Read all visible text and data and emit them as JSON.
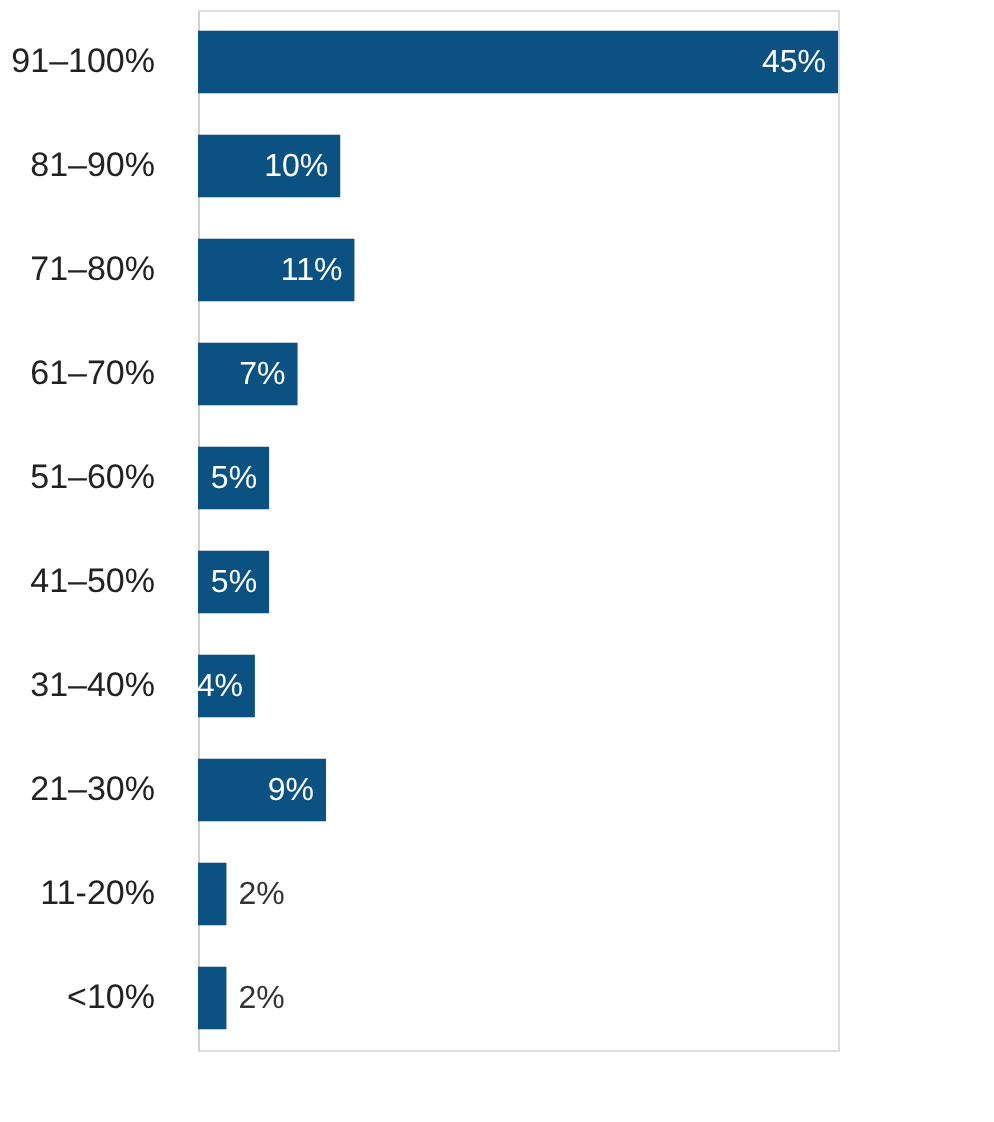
{
  "chart_data": {
    "type": "bar",
    "orientation": "horizontal",
    "categories": [
      "91–100%",
      "81–90%",
      "71–80%",
      "61–70%",
      "51–60%",
      "41–50%",
      "31–40%",
      "21–30%",
      "11-20%",
      "<10%"
    ],
    "values": [
      45,
      10,
      11,
      7,
      5,
      5,
      4,
      9,
      2,
      2
    ],
    "value_labels": [
      "45%",
      "10%",
      "11%",
      "7%",
      "5%",
      "5%",
      "4%",
      "9%",
      "2%",
      "2%"
    ],
    "color": "#0b5282"
  }
}
